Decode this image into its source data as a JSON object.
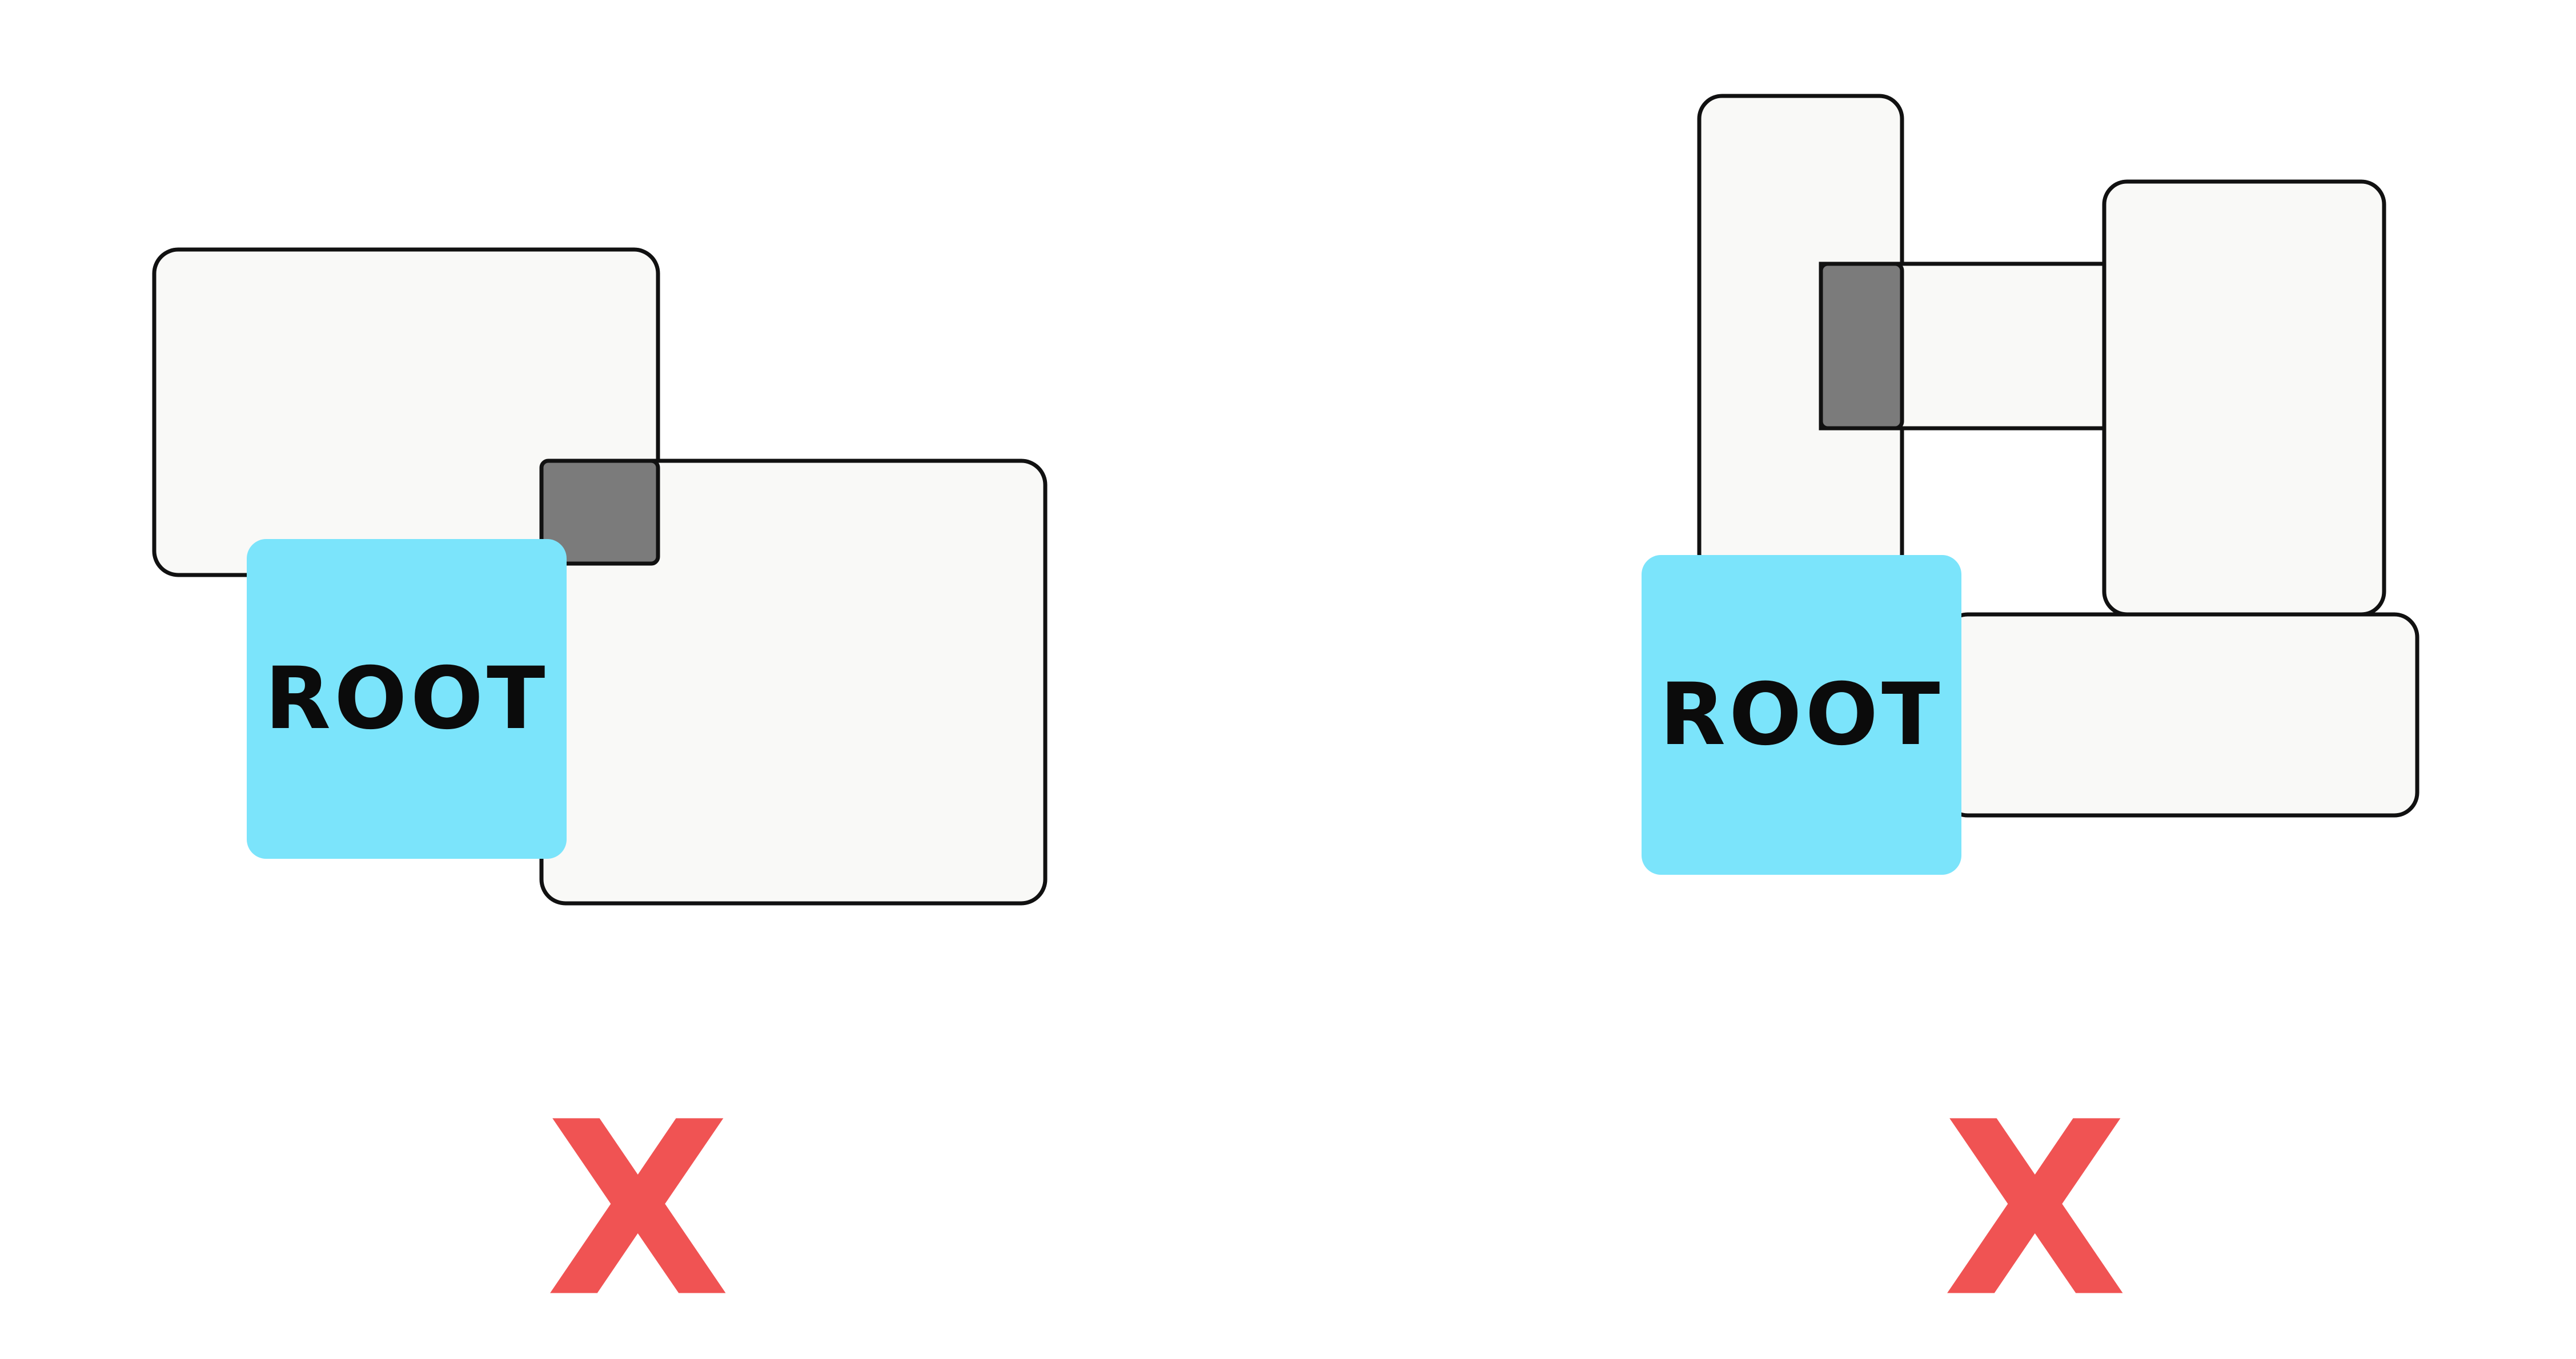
{
  "diagrams": [
    {
      "root_label": "ROOT",
      "verdict": "X"
    },
    {
      "root_label": "ROOT",
      "verdict": "X"
    }
  ],
  "colors": {
    "root_fill": "#7be4fb",
    "panel_fill": "#f9f9f7",
    "overlap_fill": "#7b7b7b",
    "verdict_color": "#f05353"
  }
}
